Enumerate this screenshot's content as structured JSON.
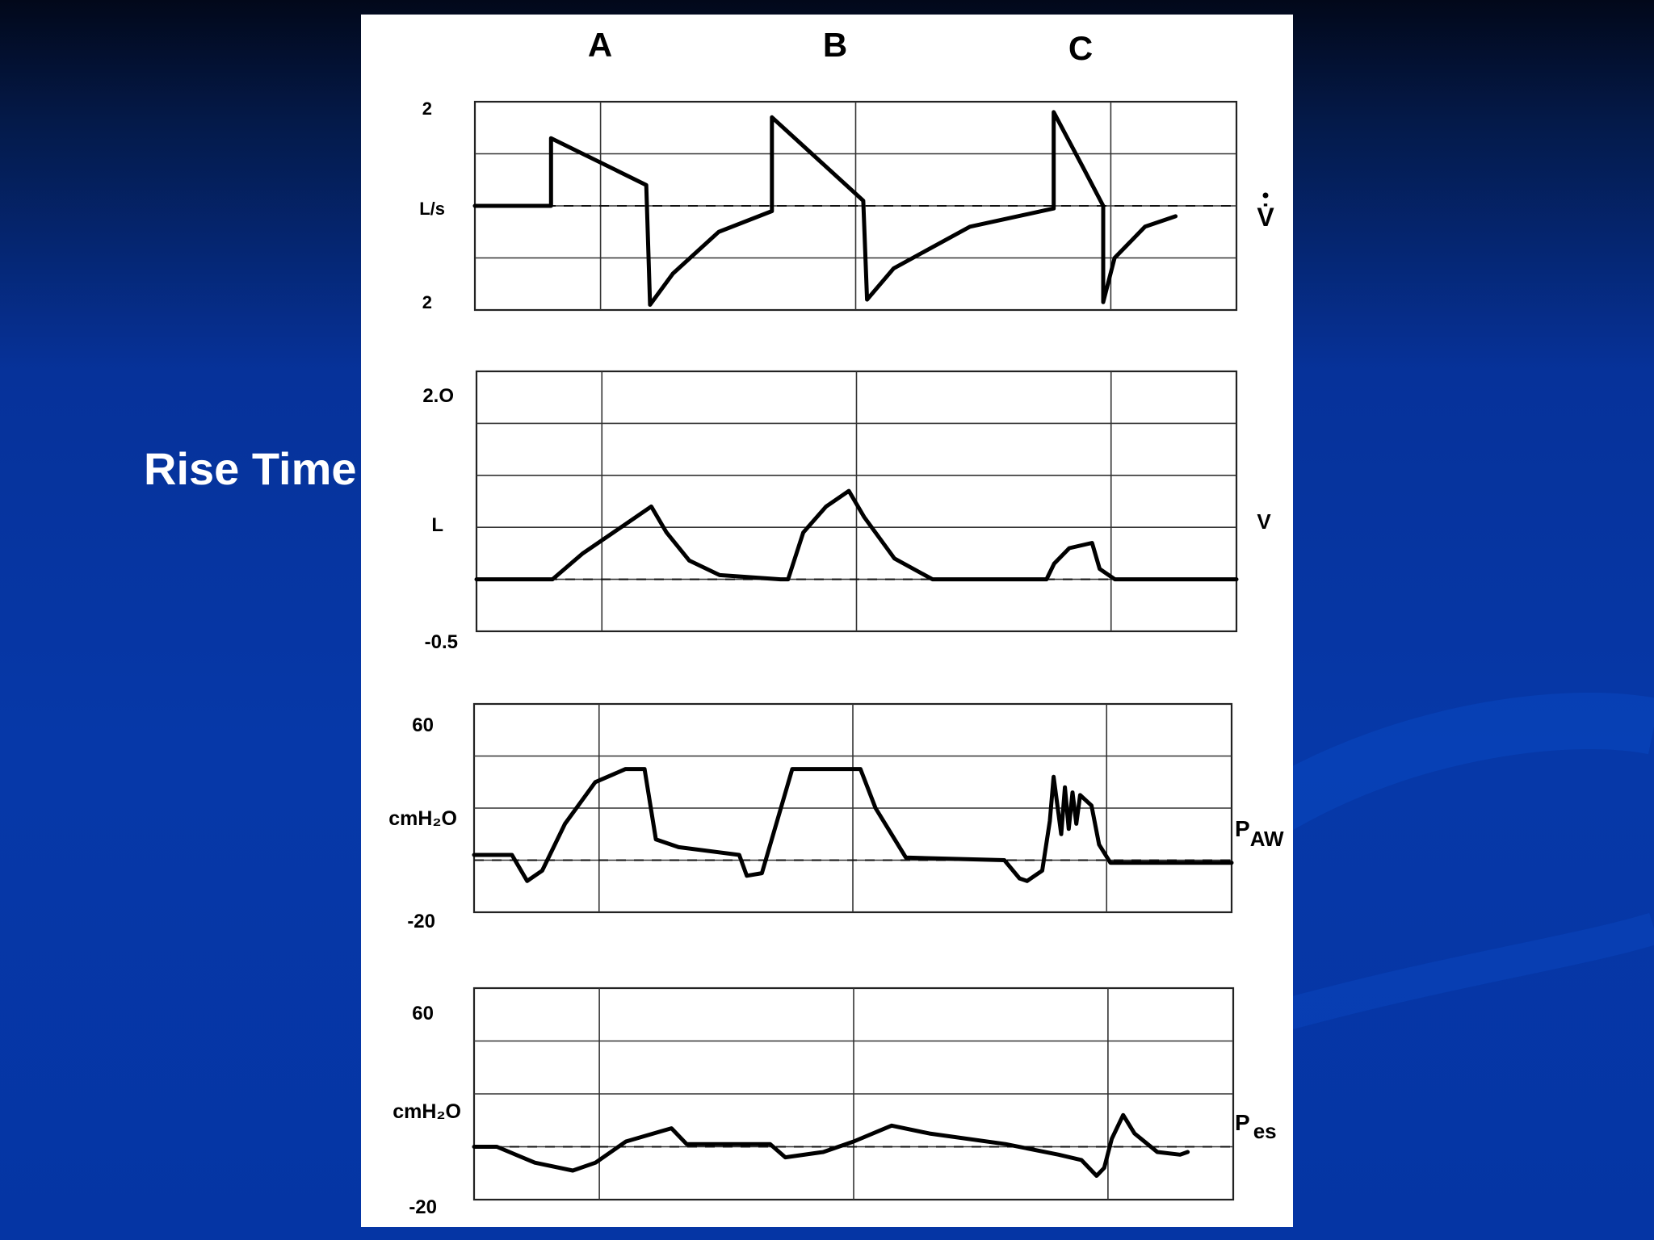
{
  "slide": {
    "title": "Rise Time",
    "colors": {
      "background": "#0638a8",
      "title_text": "#ffffff",
      "figure_bg": "#ffffff",
      "trace": "#000000"
    }
  },
  "chart_data": {
    "type": "line",
    "columns": [
      "A",
      "B",
      "C"
    ],
    "grid": true,
    "baseline": "dashed",
    "panels": [
      {
        "id": "flow",
        "name": "V̇",
        "ylabel": "L/s",
        "ticks": [
          "2",
          "2"
        ],
        "points": [
          [
            0,
            0
          ],
          [
            10,
            0
          ],
          [
            10,
            1.3
          ],
          [
            22.5,
            0.4
          ],
          [
            23,
            -1.9
          ],
          [
            26,
            -1.3
          ],
          [
            32,
            -0.5
          ],
          [
            39,
            -0.1
          ],
          [
            39,
            1.7
          ],
          [
            51,
            0.1
          ],
          [
            51.5,
            -1.8
          ],
          [
            55,
            -1.2
          ],
          [
            65,
            -0.4
          ],
          [
            76,
            -0.05
          ],
          [
            76,
            1.8
          ],
          [
            80,
            0.7
          ],
          [
            82.5,
            0
          ],
          [
            82.5,
            -1.85
          ],
          [
            84,
            -1.0
          ],
          [
            88,
            -0.4
          ],
          [
            92,
            -0.2
          ]
        ]
      },
      {
        "id": "volume",
        "name": "V",
        "ylabel": "L",
        "ticks": [
          "2.O",
          "-0.5"
        ],
        "points": [
          [
            0,
            0
          ],
          [
            10,
            0
          ],
          [
            14,
            0.25
          ],
          [
            20,
            0.55
          ],
          [
            23,
            0.7
          ],
          [
            25,
            0.45
          ],
          [
            28,
            0.18
          ],
          [
            32,
            0.04
          ],
          [
            40,
            0
          ],
          [
            41,
            0
          ],
          [
            43,
            0.45
          ],
          [
            46,
            0.7
          ],
          [
            49,
            0.85
          ],
          [
            51,
            0.6
          ],
          [
            55,
            0.2
          ],
          [
            60,
            0
          ],
          [
            75,
            0
          ],
          [
            76,
            0.15
          ],
          [
            78,
            0.3
          ],
          [
            81,
            0.35
          ],
          [
            82,
            0.1
          ],
          [
            84,
            0
          ],
          [
            100,
            0
          ]
        ]
      },
      {
        "id": "paw",
        "name": "P",
        "name_sub": "AW",
        "ylabel": "cmH₂O",
        "ticks": [
          "60",
          "-20"
        ],
        "points": [
          [
            0,
            2
          ],
          [
            5,
            2
          ],
          [
            7,
            -8
          ],
          [
            9,
            -4
          ],
          [
            12,
            14
          ],
          [
            16,
            30
          ],
          [
            20,
            35
          ],
          [
            22.5,
            35
          ],
          [
            24,
            8
          ],
          [
            27,
            5
          ],
          [
            35,
            2
          ],
          [
            36,
            -6
          ],
          [
            38,
            -5
          ],
          [
            42,
            35
          ],
          [
            51,
            35
          ],
          [
            53,
            20
          ],
          [
            57,
            1
          ],
          [
            70,
            0
          ],
          [
            72,
            -7
          ],
          [
            73,
            -8
          ],
          [
            75,
            -4
          ],
          [
            76,
            15
          ],
          [
            76.5,
            32
          ],
          [
            77.5,
            10
          ],
          [
            78,
            28
          ],
          [
            78.5,
            12
          ],
          [
            79,
            26
          ],
          [
            79.5,
            14
          ],
          [
            80,
            25
          ],
          [
            81.5,
            21
          ],
          [
            82.5,
            6
          ],
          [
            84,
            -1
          ],
          [
            100,
            -1
          ]
        ]
      },
      {
        "id": "pes",
        "name": "P",
        "name_sub": "es",
        "ylabel": "cmH₂O",
        "ticks": [
          "60",
          "-20"
        ],
        "points": [
          [
            0,
            0
          ],
          [
            3,
            0
          ],
          [
            8,
            -6
          ],
          [
            13,
            -9
          ],
          [
            16,
            -6
          ],
          [
            20,
            2
          ],
          [
            26,
            7
          ],
          [
            28,
            1
          ],
          [
            39,
            1
          ],
          [
            41,
            -4
          ],
          [
            46,
            -2
          ],
          [
            50,
            2
          ],
          [
            55,
            8
          ],
          [
            60,
            5
          ],
          [
            70,
            1
          ],
          [
            77,
            -3
          ],
          [
            80,
            -5
          ],
          [
            82,
            -11
          ],
          [
            83,
            -8
          ],
          [
            84,
            3
          ],
          [
            85.5,
            12
          ],
          [
            87,
            5
          ],
          [
            90,
            -2
          ],
          [
            93,
            -3
          ],
          [
            94,
            -2
          ]
        ]
      }
    ]
  }
}
